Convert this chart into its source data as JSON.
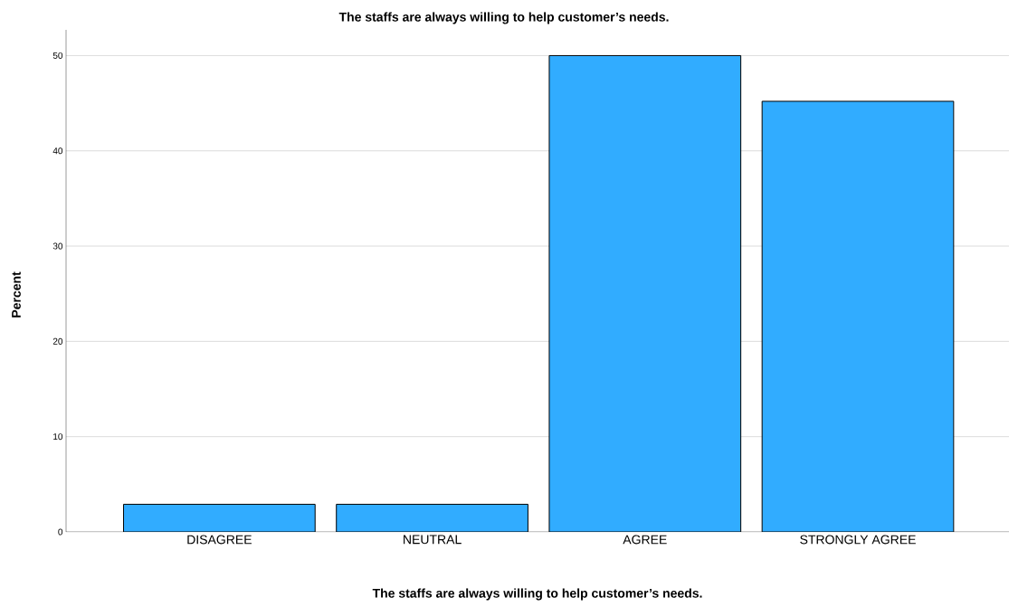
{
  "chart_data": {
    "type": "bar",
    "title": "The staffs are always willing to help customer’s needs.",
    "xlabel": "The staffs are always willing to help customer’s needs.",
    "ylabel": "Percent",
    "categories": [
      "DISAGREE",
      "NEUTRAL",
      "AGREE",
      "STRONGLY AGREE"
    ],
    "values": [
      2.9,
      2.9,
      50,
      45.2
    ],
    "color": "#31acff",
    "ylim": [
      0,
      52.7
    ],
    "yticks": [
      0,
      10,
      20,
      30,
      40,
      50
    ],
    "grid": "y"
  }
}
